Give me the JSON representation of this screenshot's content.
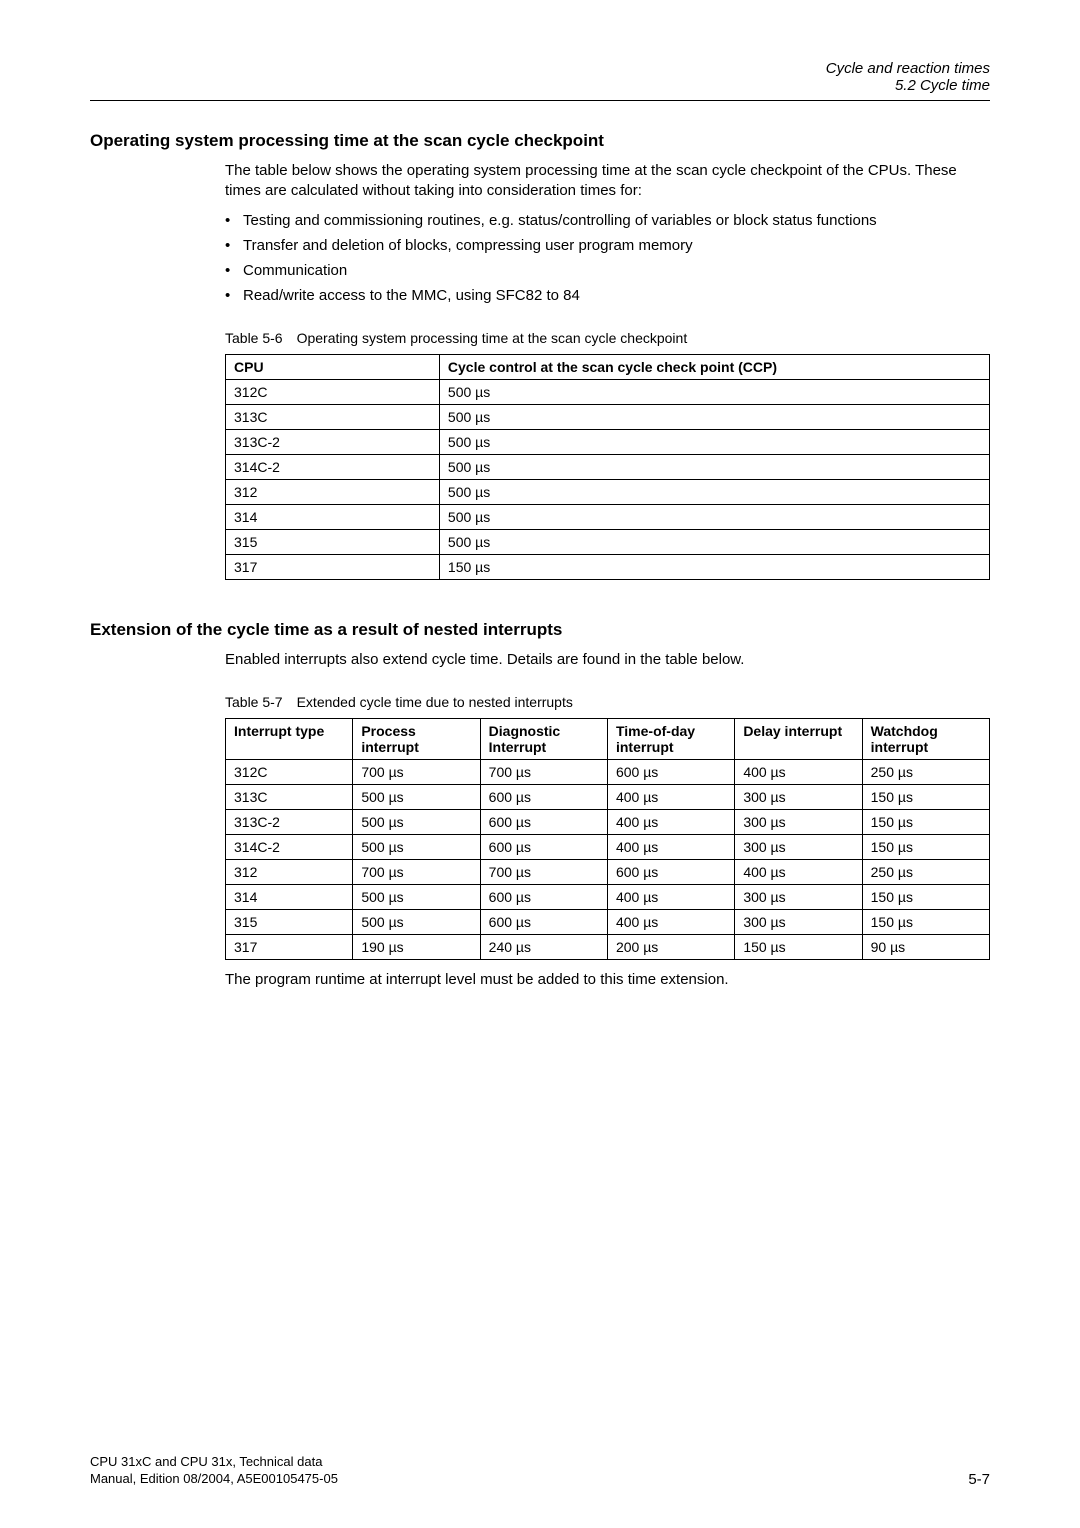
{
  "header": {
    "line1": "Cycle and reaction times",
    "line2": "5.2 Cycle time"
  },
  "section1": {
    "heading": "Operating system processing time at the scan cycle checkpoint",
    "intro1": "The table below shows the operating system processing time at the scan cycle checkpoint of the CPUs. These times are calculated without taking into consideration times for:",
    "bullets": [
      "Testing and commissioning routines, e.g. status/controlling of variables or block status functions",
      "Transfer and deletion of blocks, compressing user program memory",
      "Communication",
      "Read/write access to the MMC, using SFC82 to 84"
    ],
    "table_caption": "Table 5-6 Operating system processing time at the scan cycle checkpoint",
    "table": {
      "headers": [
        "CPU",
        "Cycle control at the scan cycle check point (CCP)"
      ],
      "rows": [
        [
          "312C",
          "500 µs"
        ],
        [
          "313C",
          "500 µs"
        ],
        [
          "313C-2",
          "500 µs"
        ],
        [
          "314C-2",
          "500 µs"
        ],
        [
          "312",
          "500 µs"
        ],
        [
          "314",
          "500 µs"
        ],
        [
          "315",
          "500 µs"
        ],
        [
          "317",
          "150 µs"
        ]
      ]
    }
  },
  "section2": {
    "heading": "Extension of the cycle time as a result of nested interrupts",
    "intro": "Enabled interrupts also extend cycle time. Details are found in the table below.",
    "table_caption": "Table 5-7 Extended cycle time due to nested interrupts",
    "table": {
      "headers": [
        "Interrupt type",
        "Process interrupt",
        "Diagnostic Interrupt",
        "Time-of-day interrupt",
        "Delay interrupt",
        "Watchdog interrupt"
      ],
      "rows": [
        [
          "312C",
          "700 µs",
          "700 µs",
          "600 µs",
          "400 µs",
          "250 µs"
        ],
        [
          "313C",
          "500 µs",
          "600 µs",
          "400 µs",
          "300 µs",
          "150 µs"
        ],
        [
          "313C-2",
          "500 µs",
          "600 µs",
          "400 µs",
          "300 µs",
          "150 µs"
        ],
        [
          "314C-2",
          "500 µs",
          "600 µs",
          "400 µs",
          "300 µs",
          "150 µs"
        ],
        [
          "312",
          "700 µs",
          "700 µs",
          "600 µs",
          "400 µs",
          "250 µs"
        ],
        [
          "314",
          "500 µs",
          "600 µs",
          "400 µs",
          "300 µs",
          "150 µs"
        ],
        [
          "315",
          "500 µs",
          "600 µs",
          "400 µs",
          "300 µs",
          "150 µs"
        ],
        [
          "317",
          "190 µs",
          "240 µs",
          "200 µs",
          "150 µs",
          "90 µs"
        ]
      ]
    },
    "final_note": "The program runtime at interrupt level must be added to this time extension."
  },
  "footer": {
    "line1": "CPU 31xC and CPU 31x, Technical data",
    "line2": "Manual, Edition 08/2004, A5E00105475-05",
    "page": "5-7"
  }
}
